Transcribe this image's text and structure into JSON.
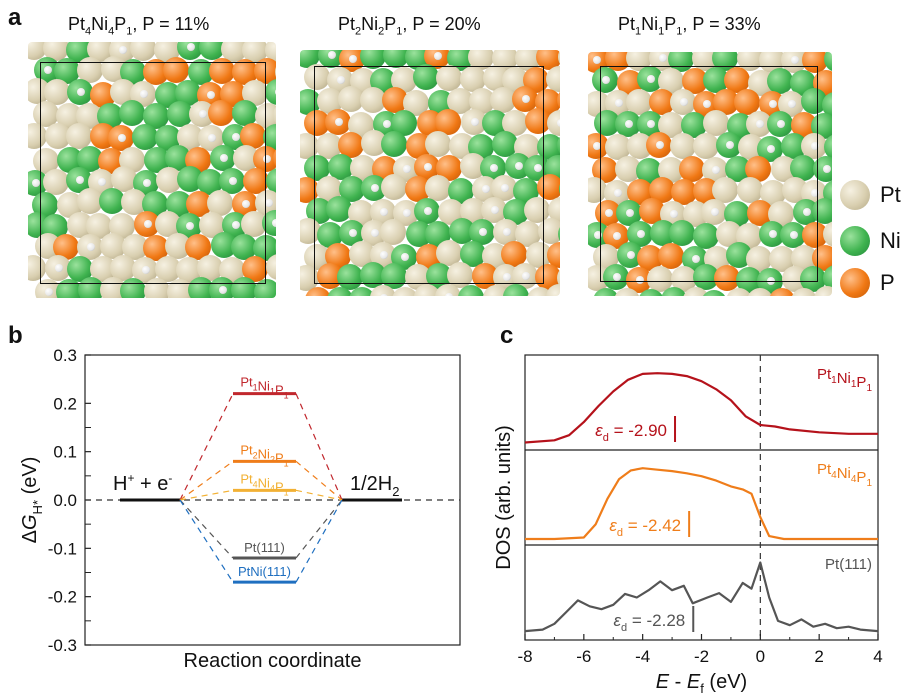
{
  "panel_a": {
    "letter": "a",
    "structures": [
      {
        "title": "Pt4Ni4P1, P = 11%",
        "seed": 11
      },
      {
        "title": "Pt2Ni2P1, P = 20%",
        "seed": 20
      },
      {
        "title": "Pt1Ni1P1, P = 33%",
        "seed": 33
      }
    ],
    "legend": [
      {
        "label": "Pt",
        "color": "#d9cfb0"
      },
      {
        "label": "Ni",
        "color": "#3fb34f"
      },
      {
        "label": "P",
        "color": "#f07814"
      }
    ]
  },
  "panel_b": {
    "letter": "b",
    "chart_data": {
      "type": "line",
      "title": "",
      "xlabel": "Reaction coordinate",
      "ylabel": "ΔG_H* (eV)",
      "ylim": [
        -0.3,
        0.3
      ],
      "yticks": [
        "0.3",
        "0.2",
        "0.1",
        "0.0",
        "-0.1",
        "-0.2",
        "-0.3"
      ],
      "reference_left": "H+ + e-",
      "reference_right": "1/2H2",
      "levels": [
        {
          "name": "Pt1Ni1P1",
          "value": 0.22,
          "color": "#c1272d"
        },
        {
          "name": "Pt2Ni2P1",
          "value": 0.08,
          "color": "#ef7d1a"
        },
        {
          "name": "Pt4Ni4P1",
          "value": 0.02,
          "color": "#f2b134"
        },
        {
          "name": "Pt(111)",
          "value": -0.12,
          "color": "#555555"
        },
        {
          "name": "PtNi(111)",
          "value": -0.17,
          "color": "#1f6fc0"
        }
      ]
    }
  },
  "panel_c": {
    "letter": "c",
    "chart_data": {
      "type": "line",
      "xlabel": "E - Ef (eV)",
      "ylabel": "DOS (arb. units)",
      "xlim": [
        -8,
        4
      ],
      "xticks": [
        -8,
        -6,
        -4,
        -2,
        0,
        2,
        4
      ],
      "series": [
        {
          "name": "Pt1Ni1P1",
          "color": "#b5121b",
          "d_band_center": -2.9,
          "d_band_label": "εd = -2.90",
          "x": [
            -8,
            -7,
            -6.5,
            -6,
            -5.5,
            -5,
            -4.5,
            -4,
            -3.5,
            -3,
            -2.5,
            -2,
            -1.5,
            -1,
            -0.5,
            0,
            0.5,
            1,
            2,
            3,
            4
          ],
          "y": [
            0.02,
            0.05,
            0.12,
            0.3,
            0.52,
            0.72,
            0.88,
            0.96,
            0.97,
            0.96,
            0.93,
            0.86,
            0.75,
            0.6,
            0.38,
            0.26,
            0.24,
            0.2,
            0.16,
            0.14,
            0.14
          ]
        },
        {
          "name": "Pt4Ni4P1",
          "color": "#ef7d1a",
          "d_band_center": -2.42,
          "d_band_label": "εd = -2.42",
          "x": [
            -8,
            -7,
            -6,
            -5.6,
            -5.2,
            -4.8,
            -4.4,
            -4,
            -3.5,
            -3,
            -2.5,
            -2,
            -1.5,
            -1,
            -0.6,
            -0.3,
            0,
            0.3,
            0.8,
            2,
            4
          ],
          "y": [
            0.0,
            0.0,
            0.02,
            0.2,
            0.55,
            0.82,
            0.94,
            0.97,
            0.95,
            0.93,
            0.9,
            0.86,
            0.8,
            0.72,
            0.68,
            0.62,
            0.3,
            0.04,
            0.0,
            0.0,
            0.0
          ]
        },
        {
          "name": "Pt(111)",
          "color": "#555555",
          "d_band_center": -2.28,
          "d_band_label": "εd = -2.28",
          "x": [
            -8,
            -7.4,
            -7,
            -6.6,
            -6.2,
            -5.8,
            -5.4,
            -5,
            -4.6,
            -4.2,
            -3.8,
            -3.4,
            -3.0,
            -2.6,
            -2.3,
            -1.8,
            -1.4,
            -1.0,
            -0.6,
            -0.3,
            0,
            0.3,
            0.6,
            1.0,
            1.4,
            1.8,
            2.2,
            2.6,
            3.0,
            3.4,
            4
          ],
          "y": [
            0.04,
            0.06,
            0.14,
            0.3,
            0.46,
            0.38,
            0.34,
            0.4,
            0.55,
            0.5,
            0.6,
            0.72,
            0.6,
            0.66,
            0.42,
            0.5,
            0.56,
            0.44,
            0.7,
            0.62,
            0.98,
            0.5,
            0.18,
            0.12,
            0.2,
            0.1,
            0.14,
            0.08,
            0.1,
            0.06,
            0.04
          ]
        }
      ]
    }
  }
}
